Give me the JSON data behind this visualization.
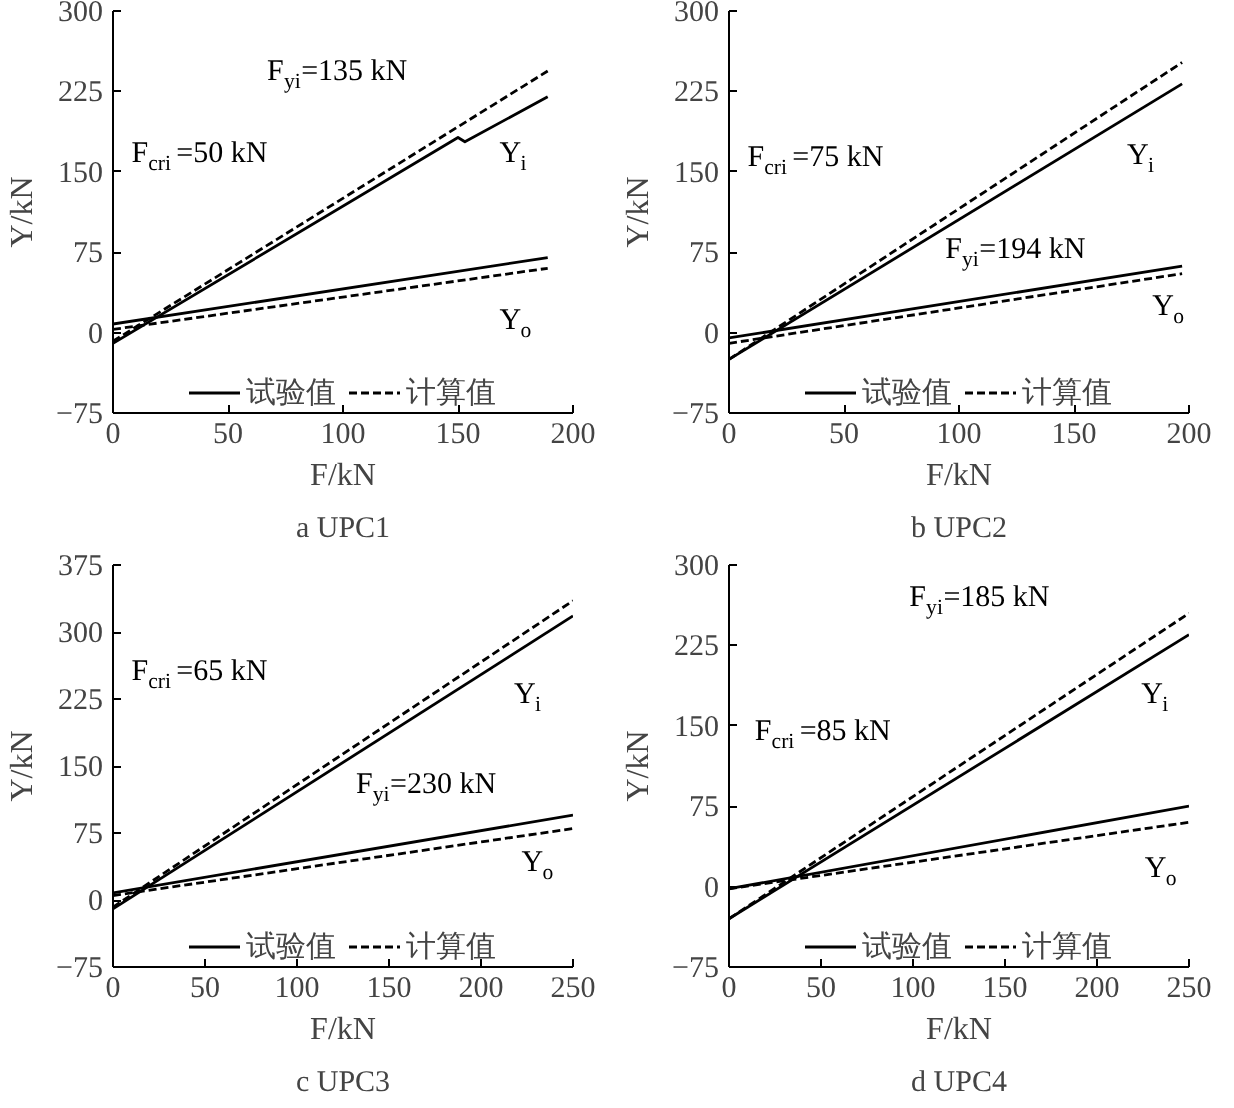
{
  "chart_data": [
    {
      "type": "line",
      "title": "a UPC1",
      "xlabel": "F/kN",
      "ylabel": "Y/kN",
      "xlim": [
        0,
        200
      ],
      "ylim": [
        -75,
        300
      ],
      "xticks": [
        0,
        50,
        100,
        150,
        200
      ],
      "yticks": [
        -75,
        0,
        75,
        150,
        225,
        300
      ],
      "grid": false,
      "legend": "bottom",
      "series": [
        {
          "name": "试验值",
          "color": "#000000",
          "line_style": "solid",
          "x": [
            0,
            150,
            153,
            189
          ],
          "values": [
            -10,
            182,
            178,
            220
          ]
        },
        {
          "name": "计算值",
          "color": "#000000",
          "line_style": "dashed",
          "x": [
            0,
            189
          ],
          "values": [
            -8,
            244
          ]
        },
        {
          "color": "#000000",
          "line_style": "solid",
          "x": [
            0,
            189
          ],
          "values": [
            8,
            70
          ]
        },
        {
          "color": "#000000",
          "line_style": "dashed",
          "x": [
            0,
            189
          ],
          "values": [
            3,
            60
          ]
        }
      ],
      "annotations": [
        "F$_{yi}$=135 kN",
        "F$_{cri}$=50 kN",
        "Y$_{i}$",
        "Y$_{o}$"
      ]
    },
    {
      "type": "line",
      "title": "b UPC2",
      "xlabel": "F/kN",
      "ylabel": "Y/kN",
      "xlim": [
        0,
        200
      ],
      "ylim": [
        -75,
        300
      ],
      "xticks": [
        0,
        50,
        100,
        150,
        200
      ],
      "yticks": [
        -75,
        0,
        75,
        150,
        225,
        300
      ],
      "grid": false,
      "legend": "bottom",
      "series": [
        {
          "name": "试验值",
          "color": "#000000",
          "line_style": "solid",
          "x": [
            0,
            197
          ],
          "values": [
            -25,
            232
          ]
        },
        {
          "name": "计算值",
          "color": "#000000",
          "line_style": "dashed",
          "x": [
            0,
            197
          ],
          "values": [
            -25,
            252
          ]
        },
        {
          "color": "#000000",
          "line_style": "solid",
          "x": [
            0,
            197
          ],
          "values": [
            -5,
            62
          ]
        },
        {
          "color": "#000000",
          "line_style": "dashed",
          "x": [
            0,
            197
          ],
          "values": [
            -10,
            55
          ]
        }
      ],
      "annotations": [
        "F$_{cri}$=75 kN",
        "Y$_{i}$",
        "F$_{yi}$=194 kN",
        "Y$_{o}$"
      ]
    },
    {
      "type": "line",
      "title": "c UPC3",
      "xlabel": "F/kN",
      "ylabel": "Y/kN",
      "xlim": [
        0,
        250
      ],
      "ylim": [
        -75,
        375
      ],
      "xticks": [
        0,
        50,
        100,
        150,
        200,
        250
      ],
      "yticks": [
        -75,
        0,
        75,
        150,
        225,
        300,
        375
      ],
      "grid": false,
      "legend": "bottom",
      "series": [
        {
          "name": "试验值",
          "color": "#000000",
          "line_style": "solid",
          "x": [
            0,
            250
          ],
          "values": [
            -10,
            318
          ]
        },
        {
          "name": "计算值",
          "color": "#000000",
          "line_style": "dashed",
          "x": [
            0,
            250
          ],
          "values": [
            -8,
            335
          ]
        },
        {
          "color": "#000000",
          "line_style": "solid",
          "x": [
            0,
            250
          ],
          "values": [
            8,
            95
          ]
        },
        {
          "color": "#000000",
          "line_style": "dashed",
          "x": [
            0,
            250
          ],
          "values": [
            5,
            80
          ]
        }
      ],
      "annotations": [
        "F$_{cri}$=65 kN",
        "Y$_{i}$",
        "F$_{yi}$=230 kN",
        "Y$_{o}$"
      ]
    },
    {
      "type": "line",
      "title": "d UPC4",
      "xlabel": "F/kN",
      "ylabel": "Y/kN",
      "xlim": [
        0,
        250
      ],
      "ylim": [
        -75,
        300
      ],
      "xticks": [
        0,
        50,
        100,
        150,
        200,
        250
      ],
      "yticks": [
        -75,
        0,
        75,
        150,
        225,
        300
      ],
      "grid": false,
      "legend": "bottom",
      "series": [
        {
          "name": "试验值",
          "color": "#000000",
          "line_style": "solid",
          "x": [
            0,
            250
          ],
          "values": [
            -30,
            235
          ]
        },
        {
          "name": "计算值",
          "color": "#000000",
          "line_style": "dashed",
          "x": [
            0,
            250
          ],
          "values": [
            -30,
            255
          ]
        },
        {
          "color": "#000000",
          "line_style": "solid",
          "x": [
            0,
            250
          ],
          "values": [
            -2,
            75
          ]
        },
        {
          "color": "#000000",
          "line_style": "dashed",
          "x": [
            0,
            250
          ],
          "values": [
            -2,
            60
          ]
        }
      ],
      "annotations": [
        "F$_{yi}$=185 kN",
        "F$_{cri}$=85 kN",
        "Y$_{i}$",
        "Y$_{o}$"
      ]
    }
  ]
}
